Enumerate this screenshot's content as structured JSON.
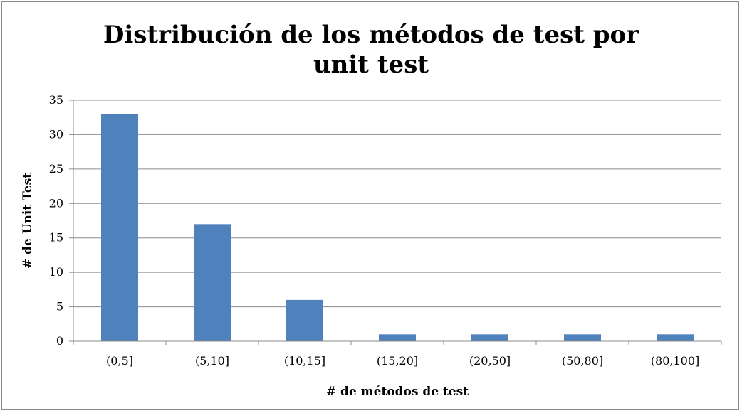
{
  "chart_data": {
    "type": "bar",
    "title_lines": [
      "Distribución de los métodos de test por",
      "unit test"
    ],
    "xlabel": "# de métodos de test",
    "ylabel": "# de Unit Test",
    "categories": [
      "(0,5]",
      "(5,10]",
      "(10,15]",
      "(15,20]",
      "(20,50]",
      "(50,80]",
      "(80,100]"
    ],
    "values": [
      33,
      17,
      6,
      1,
      1,
      1,
      1
    ],
    "ylim": [
      0,
      35
    ],
    "yticks": [
      0,
      5,
      10,
      15,
      20,
      25,
      30,
      35
    ],
    "grid": true,
    "legend": "none",
    "bar_color": "#4f81bd",
    "grid_color": "#8c8c8c"
  }
}
